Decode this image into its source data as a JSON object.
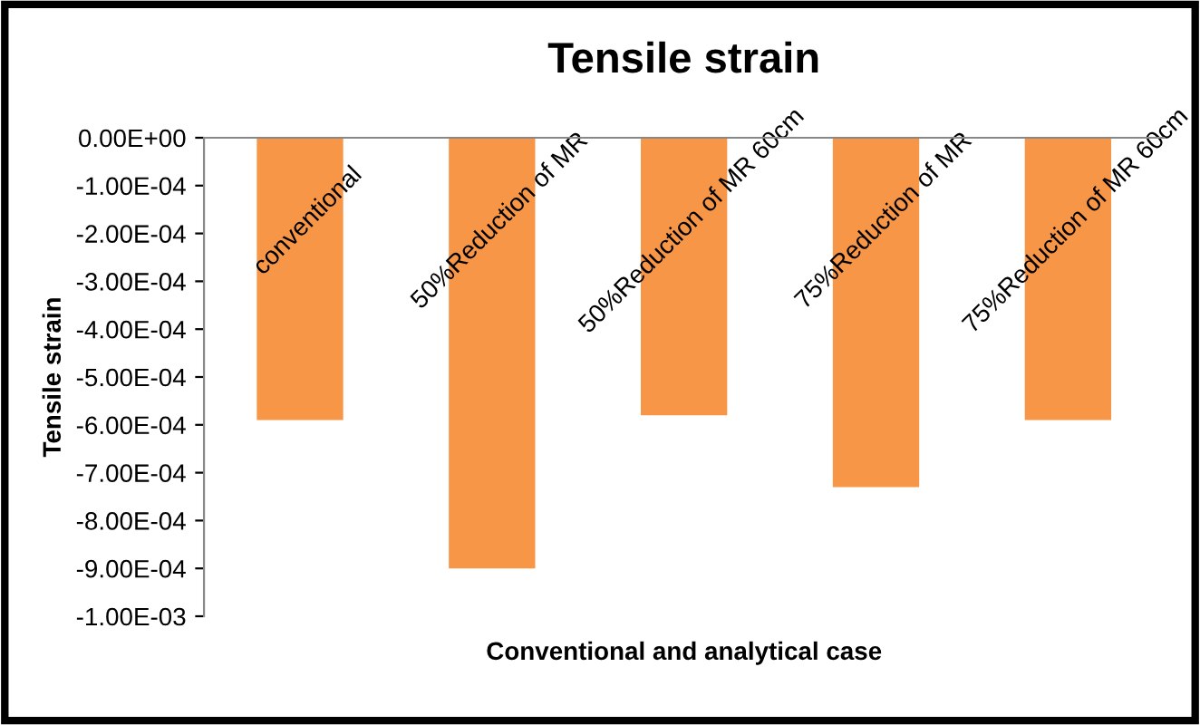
{
  "chart_data": {
    "type": "bar",
    "title": "Tensile strain",
    "xlabel": "Conventional and analytical case",
    "ylabel": "Tensile strain",
    "categories": [
      "conventional",
      "50%Reduction of MR",
      "50%Reduction of MR 60cm",
      "75%Reduction of MR",
      "75%Reduction of MR 60cm"
    ],
    "values": [
      -0.00059,
      -0.0009,
      -0.00058,
      -0.00073,
      -0.00059
    ],
    "color": "#f79646",
    "ylim": [
      -0.001,
      0
    ],
    "yticks": [
      {
        "value": 0,
        "label": "0.00E+00"
      },
      {
        "value": -0.0001,
        "label": "-1.00E-04"
      },
      {
        "value": -0.0002,
        "label": "-2.00E-04"
      },
      {
        "value": -0.0003,
        "label": "-3.00E-04"
      },
      {
        "value": -0.0004,
        "label": "-4.00E-04"
      },
      {
        "value": -0.0005,
        "label": "-5.00E-04"
      },
      {
        "value": -0.0006,
        "label": "-6.00E-04"
      },
      {
        "value": -0.0007,
        "label": "-7.00E-04"
      },
      {
        "value": -0.0008,
        "label": "-8.00E-04"
      },
      {
        "value": -0.0009,
        "label": "-9.00E-04"
      },
      {
        "value": -0.001,
        "label": "-1.00E-03"
      }
    ],
    "grid": false,
    "legend": false
  }
}
